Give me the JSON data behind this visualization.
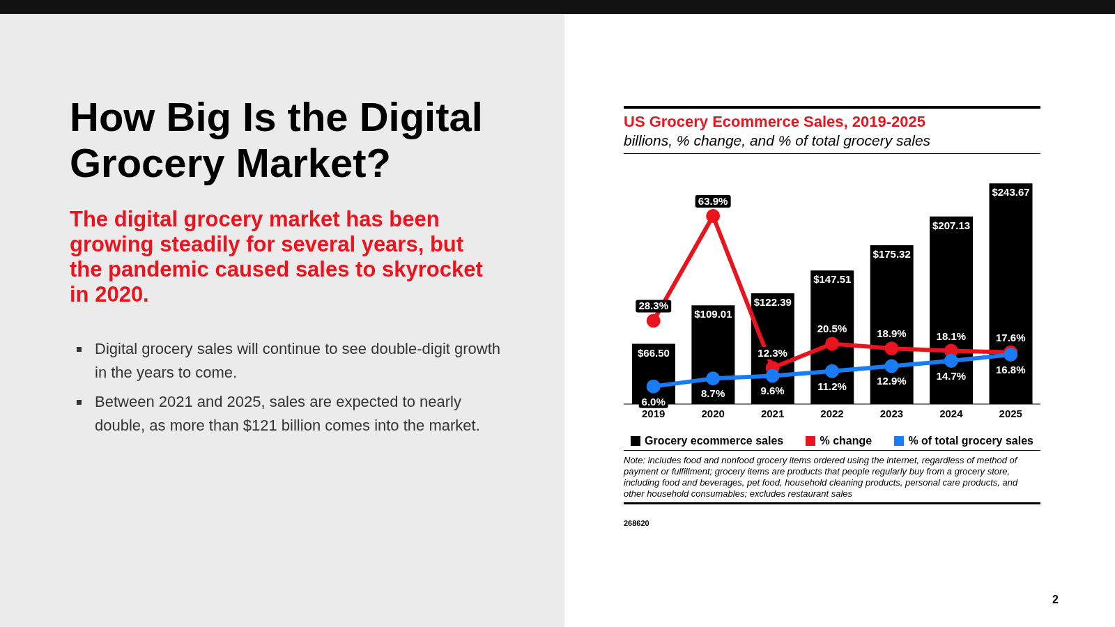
{
  "chart_data": {
    "type": "bar",
    "title": "US Grocery Ecommerce Sales, 2019-2025",
    "subtitle": "billions, % change, and % of total grocery sales",
    "categories": [
      "2019",
      "2020",
      "2021",
      "2022",
      "2023",
      "2024",
      "2025"
    ],
    "series": [
      {
        "name": "Grocery ecommerce sales",
        "color": "#000000",
        "values": [
          66.5,
          109.01,
          122.39,
          147.51,
          175.32,
          207.13,
          243.67
        ],
        "value_labels": [
          "$66.50",
          "$109.01",
          "$122.39",
          "$147.51",
          "$175.32",
          "$207.13",
          "$243.67"
        ]
      },
      {
        "name": "% change",
        "type": "line",
        "axis": "y2",
        "color": "#e8141e",
        "values": [
          28.3,
          63.9,
          12.3,
          20.5,
          18.9,
          18.1,
          17.6
        ],
        "value_labels": [
          "28.3%",
          "63.9%",
          "12.3%",
          "20.5%",
          "18.9%",
          "18.1%",
          "17.6%"
        ]
      },
      {
        "name": "% of total grocery sales",
        "type": "line",
        "axis": "y2",
        "color": "#1a7cf5",
        "values": [
          6.0,
          8.7,
          9.6,
          11.2,
          12.9,
          14.7,
          16.8
        ],
        "value_labels": [
          "6.0%",
          "8.7%",
          "9.6%",
          "11.2%",
          "12.9%",
          "14.7%",
          "16.8%"
        ]
      }
    ],
    "tick_labels": "x",
    "legend": "bottom",
    "marker": "circle",
    "line_style": "solid",
    "annotations": [
      "How Big Is the Digital Grocery Market?",
      "The digital grocery market has been growing steadily for several years, but the pandemic caused sales to skyrocket in 2020.",
      "Digital grocery sales will continue to see double-digit growth in the years to come.",
      "Between 2021 and 2025, sales are expected to nearly double, as more than $121 billion comes into the market.",
      "Note: includes food and nonfood grocery items ordered using the internet, regardless of method of payment or fulfillment; grocery items are products that people regularly buy from a grocery store, including food and beverages, pet food, household cleaning products, personal care products, and other household consumables; excludes restaurant sales",
      "268620",
      "2"
    ]
  }
}
